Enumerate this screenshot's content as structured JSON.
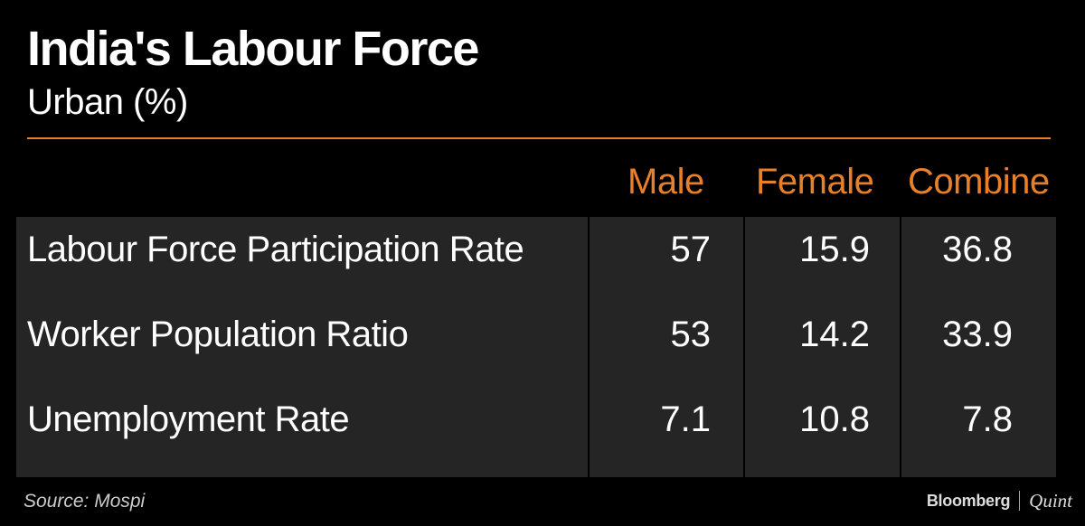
{
  "header": {
    "title": "India's Labour Force",
    "subtitle": "Urban (%)"
  },
  "chart_data": {
    "type": "table",
    "title": "India's Labour Force",
    "subtitle": "Urban (%)",
    "columns": [
      "Male",
      "Female",
      "Combine"
    ],
    "rows": [
      {
        "label": "Labour Force Participation Rate",
        "values": [
          "57",
          "15.9",
          "36.8"
        ]
      },
      {
        "label": "Worker Population Ratio",
        "values": [
          "53",
          "14.2",
          "33.9"
        ]
      },
      {
        "label": "Unemployment Rate",
        "values": [
          "7.1",
          "10.8",
          "7.8"
        ]
      }
    ]
  },
  "footer": {
    "source": "Source: Mospi",
    "logo_left": "Bloomberg",
    "logo_right": "Quint"
  },
  "colors": {
    "background": "#000000",
    "accent": "#e8802a",
    "table_bg": "#252525",
    "text": "#ffffff"
  }
}
